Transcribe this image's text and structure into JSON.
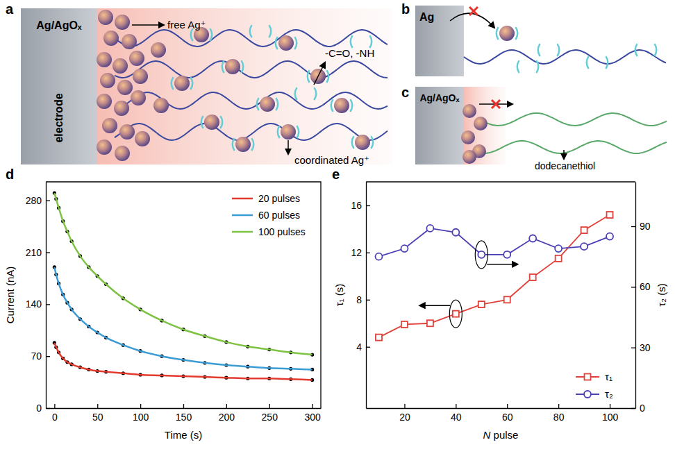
{
  "panels": {
    "a": {
      "letter": "a",
      "electrode_label": "Ag/AgOₓ",
      "electrode": "electrode",
      "free": "free Ag⁺",
      "groups": "-C=O, -NH",
      "coordinated": "coordinated Ag⁺"
    },
    "b": {
      "letter": "b",
      "electrode_label": "Ag"
    },
    "c": {
      "letter": "c",
      "electrode_label": "Ag/AgOₓ",
      "molecule": "dodecanethiol"
    },
    "d": {
      "letter": "d"
    },
    "e": {
      "letter": "e"
    }
  },
  "chart_data": [
    {
      "type": "line",
      "x_label": "Time (s)",
      "y_label": "Current (nA)",
      "x": [
        0,
        2,
        5,
        10,
        15,
        20,
        30,
        40,
        50,
        60,
        80,
        100,
        125,
        150,
        175,
        200,
        225,
        250,
        275,
        300
      ],
      "series": [
        {
          "name": "20 pulses",
          "color": "#e23b2e",
          "marker": "dot",
          "line_style": "solid",
          "values": [
            88,
            82,
            75,
            67,
            62,
            59,
            55,
            52,
            50,
            49,
            47,
            45,
            44,
            43,
            42,
            41,
            40,
            40,
            39,
            38
          ]
        },
        {
          "name": "60 pulses",
          "color": "#3b9bd4",
          "marker": "dot",
          "line_style": "solid",
          "values": [
            190,
            180,
            168,
            153,
            142,
            133,
            120,
            110,
            102,
            95,
            85,
            77,
            70,
            65,
            61,
            58,
            56,
            54,
            53,
            52
          ]
        },
        {
          "name": "100 pulses",
          "color": "#7dc242",
          "marker": "dot",
          "line_style": "solid",
          "values": [
            290,
            282,
            270,
            252,
            238,
            225,
            205,
            190,
            178,
            167,
            148,
            133,
            118,
            106,
            97,
            89,
            83,
            79,
            75,
            72
          ]
        }
      ],
      "xlim": [
        -10,
        310
      ],
      "xticks": [
        0,
        50,
        100,
        150,
        200,
        250,
        300
      ],
      "ylim": [
        0,
        305
      ],
      "yticks": [
        0,
        70,
        140,
        210,
        280
      ],
      "legend": "upper right"
    },
    {
      "type": "line",
      "x_label": "N pulse",
      "y_label": "τ₁ (s)",
      "y2_label": "τ₂ (s)",
      "x": [
        10,
        20,
        30,
        40,
        50,
        60,
        70,
        80,
        90,
        100
      ],
      "series": [
        {
          "name": "τ₁",
          "color": "#e0413a",
          "marker": "square",
          "line_style": "solid",
          "values": [
            4.8,
            5.9,
            6.0,
            6.8,
            7.6,
            8.0,
            9.9,
            11.5,
            13.9,
            15.2
          ]
        },
        {
          "name": "τ₂",
          "color": "#4b3fb5",
          "marker": "circle",
          "line_style": "solid",
          "axis": "y2",
          "values": [
            75,
            79,
            89,
            87,
            76,
            76,
            84,
            79,
            80,
            85
          ]
        }
      ],
      "xlim": [
        5,
        110
      ],
      "xticks": [
        20,
        40,
        60,
        80,
        100
      ],
      "ylim": [
        -1.2,
        18
      ],
      "yticks": [
        4,
        8,
        12,
        16
      ],
      "y2lim": [
        0,
        112
      ],
      "y2ticks": [
        0,
        30,
        60,
        90
      ],
      "legend": "lower right"
    }
  ]
}
